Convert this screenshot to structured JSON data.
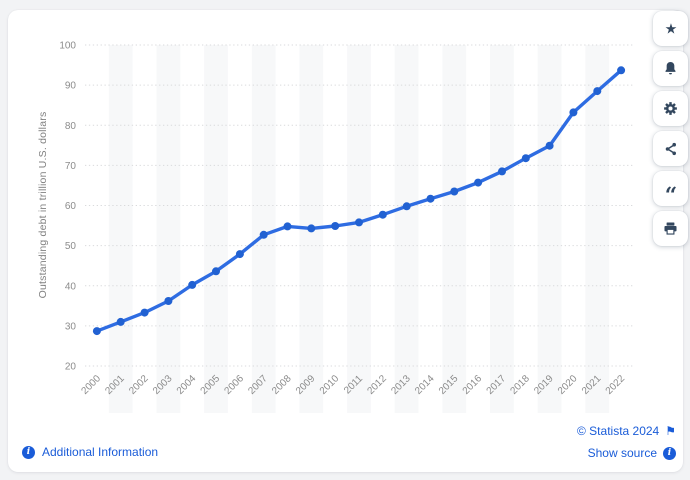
{
  "theme": {
    "page_background": "#f2f3f5",
    "card_background": "#ffffff",
    "link_color": "#1a5cd8",
    "icon_color": "#33475e"
  },
  "chart_data": {
    "type": "line",
    "title": "",
    "x": [
      "2000",
      "2001",
      "2002",
      "2003",
      "2004",
      "2005",
      "2006",
      "2007",
      "2008",
      "2009",
      "2010",
      "2011",
      "2012",
      "2013",
      "2014",
      "2015",
      "2016",
      "2017",
      "2018",
      "2019",
      "2020",
      "2021",
      "2022"
    ],
    "series": [
      {
        "name": "Outstanding debt",
        "values": [
          28.7,
          31.0,
          33.3,
          36.2,
          40.2,
          43.6,
          47.9,
          52.7,
          54.8,
          54.3,
          54.9,
          55.8,
          57.7,
          59.8,
          61.7,
          63.5,
          65.7,
          68.5,
          71.8,
          74.9,
          83.2,
          88.5,
          93.7
        ]
      }
    ],
    "xlabel": "",
    "ylabel": "Outstanding debt in trillion U.S. dollars",
    "ylim": [
      20,
      100
    ],
    "yticks": [
      20,
      30,
      40,
      50,
      60,
      70,
      80,
      90,
      100
    ],
    "grid": "horizontal-dotted",
    "legend": "none",
    "colors": {
      "line": "#2e6ce2",
      "point": "#2161d2",
      "band": "#f7f8f9",
      "grid": "#d9dadc",
      "tick_text": "#8c8c8c",
      "axis_title": "#818181"
    }
  },
  "toolbar": {
    "items": [
      {
        "name": "favorite",
        "icon": "star-icon"
      },
      {
        "name": "notifications",
        "icon": "bell-icon"
      },
      {
        "name": "settings",
        "icon": "gear-icon"
      },
      {
        "name": "share",
        "icon": "share-icon"
      },
      {
        "name": "cite",
        "icon": "quote-icon"
      },
      {
        "name": "print",
        "icon": "printer-icon"
      }
    ]
  },
  "footer": {
    "additional_info_label": "Additional Information",
    "copyright_label": "© Statista 2024",
    "show_source_label": "Show source"
  }
}
